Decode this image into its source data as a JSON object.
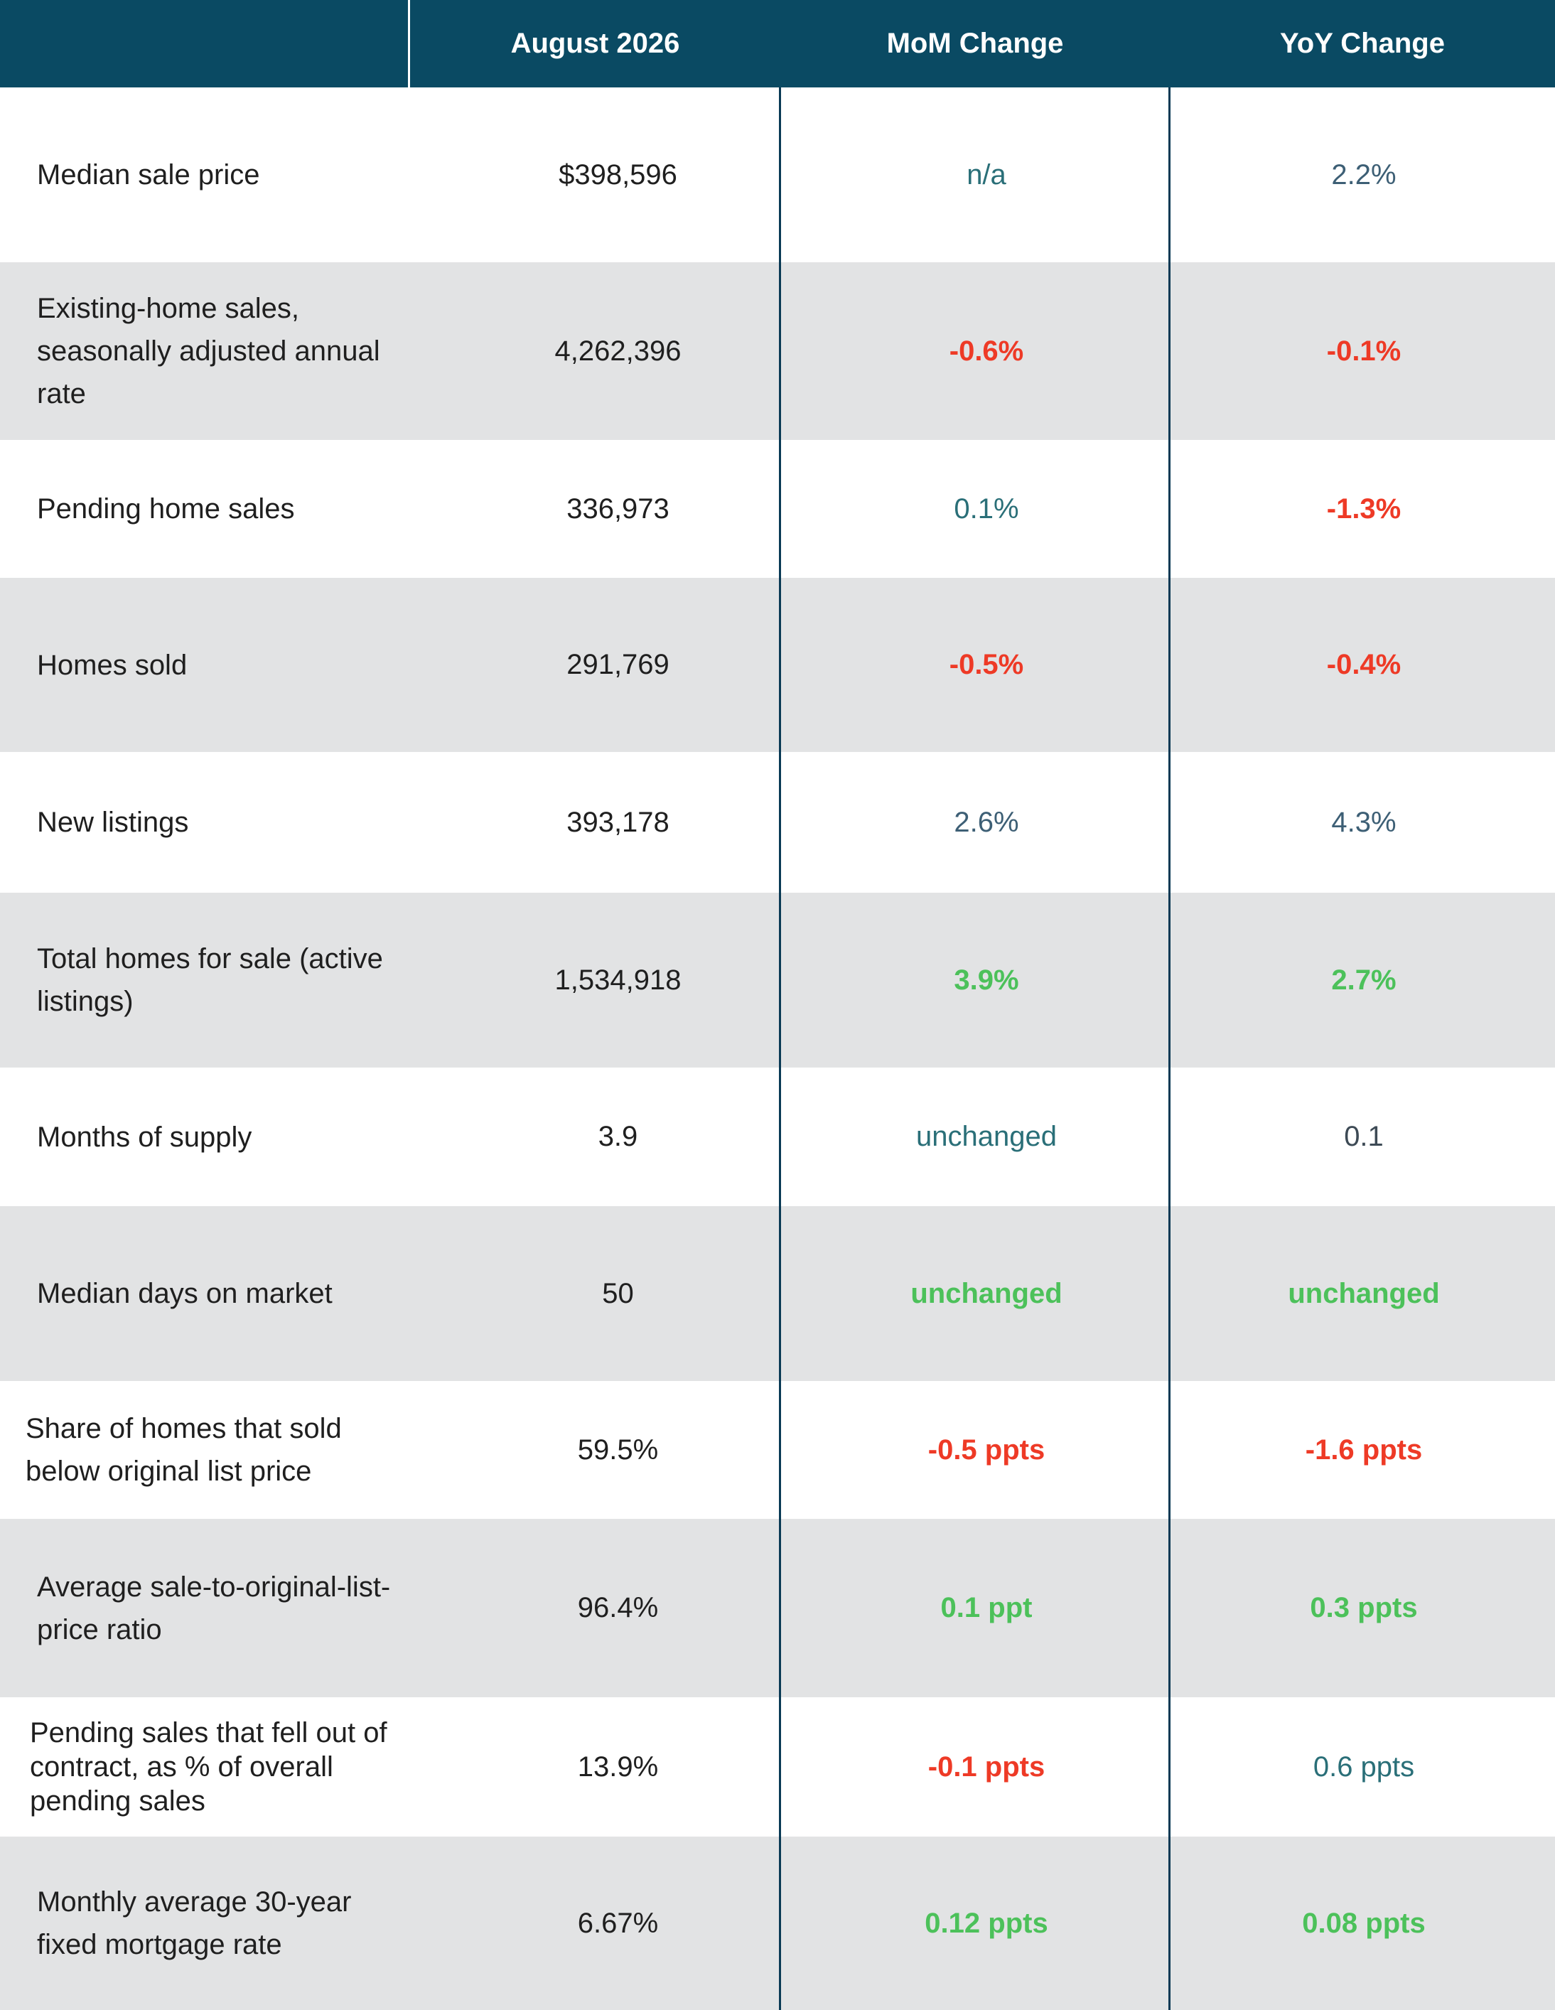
{
  "header": {
    "col0": "",
    "col1": "August 2026",
    "col2": "MoM Change",
    "col3": "YoY Change"
  },
  "colors": {
    "header_bg": "#0a4a63",
    "alt_row_bg": "#e2e3e4",
    "negative": "#ee3a26",
    "positive_green": "#4cc15a",
    "neutral_teal": "#2a6f78",
    "divider": "#0a3a55"
  },
  "rows": [
    {
      "label": "Median sale price",
      "value": "$398,596",
      "mom": "n/a",
      "yoy": "2.2%"
    },
    {
      "label": "Existing-home sales, seasonally adjusted annual rate",
      "value": "4,262,396",
      "mom": "-0.6%",
      "yoy": "-0.1%"
    },
    {
      "label": "Pending home sales",
      "value": "336,973",
      "mom": "0.1%",
      "yoy": "-1.3%"
    },
    {
      "label": "Homes sold",
      "value": "291,769",
      "mom": "-0.5%",
      "yoy": "-0.4%"
    },
    {
      "label": "New listings",
      "value": "393,178",
      "mom": "2.6%",
      "yoy": "4.3%"
    },
    {
      "label": "Total homes for sale (active listings)",
      "value": "1,534,918",
      "mom": "3.9%",
      "yoy": "2.7%"
    },
    {
      "label": "Months of supply",
      "value": "3.9",
      "mom": "unchanged",
      "yoy": "0.1"
    },
    {
      "label": "Median days on market",
      "value": "50",
      "mom": "unchanged",
      "yoy": "unchanged"
    },
    {
      "label": "Share of homes that sold below original list price",
      "value": "59.5%",
      "mom": "-0.5 ppts",
      "yoy": "-1.6 ppts"
    },
    {
      "label": "Average sale-to-original-list-price ratio",
      "value": "96.4%",
      "mom": "0.1 ppt",
      "yoy": "0.3 ppts"
    },
    {
      "label": "Pending sales that fell out of contract, as % of overall pending sales",
      "value": "13.9%",
      "mom": "-0.1 ppts",
      "yoy": "0.6 ppts"
    },
    {
      "label": "Monthly average 30-year fixed mortgage rate",
      "value": "6.67%",
      "mom": "0.12 ppts",
      "yoy": "0.08 ppts"
    }
  ]
}
